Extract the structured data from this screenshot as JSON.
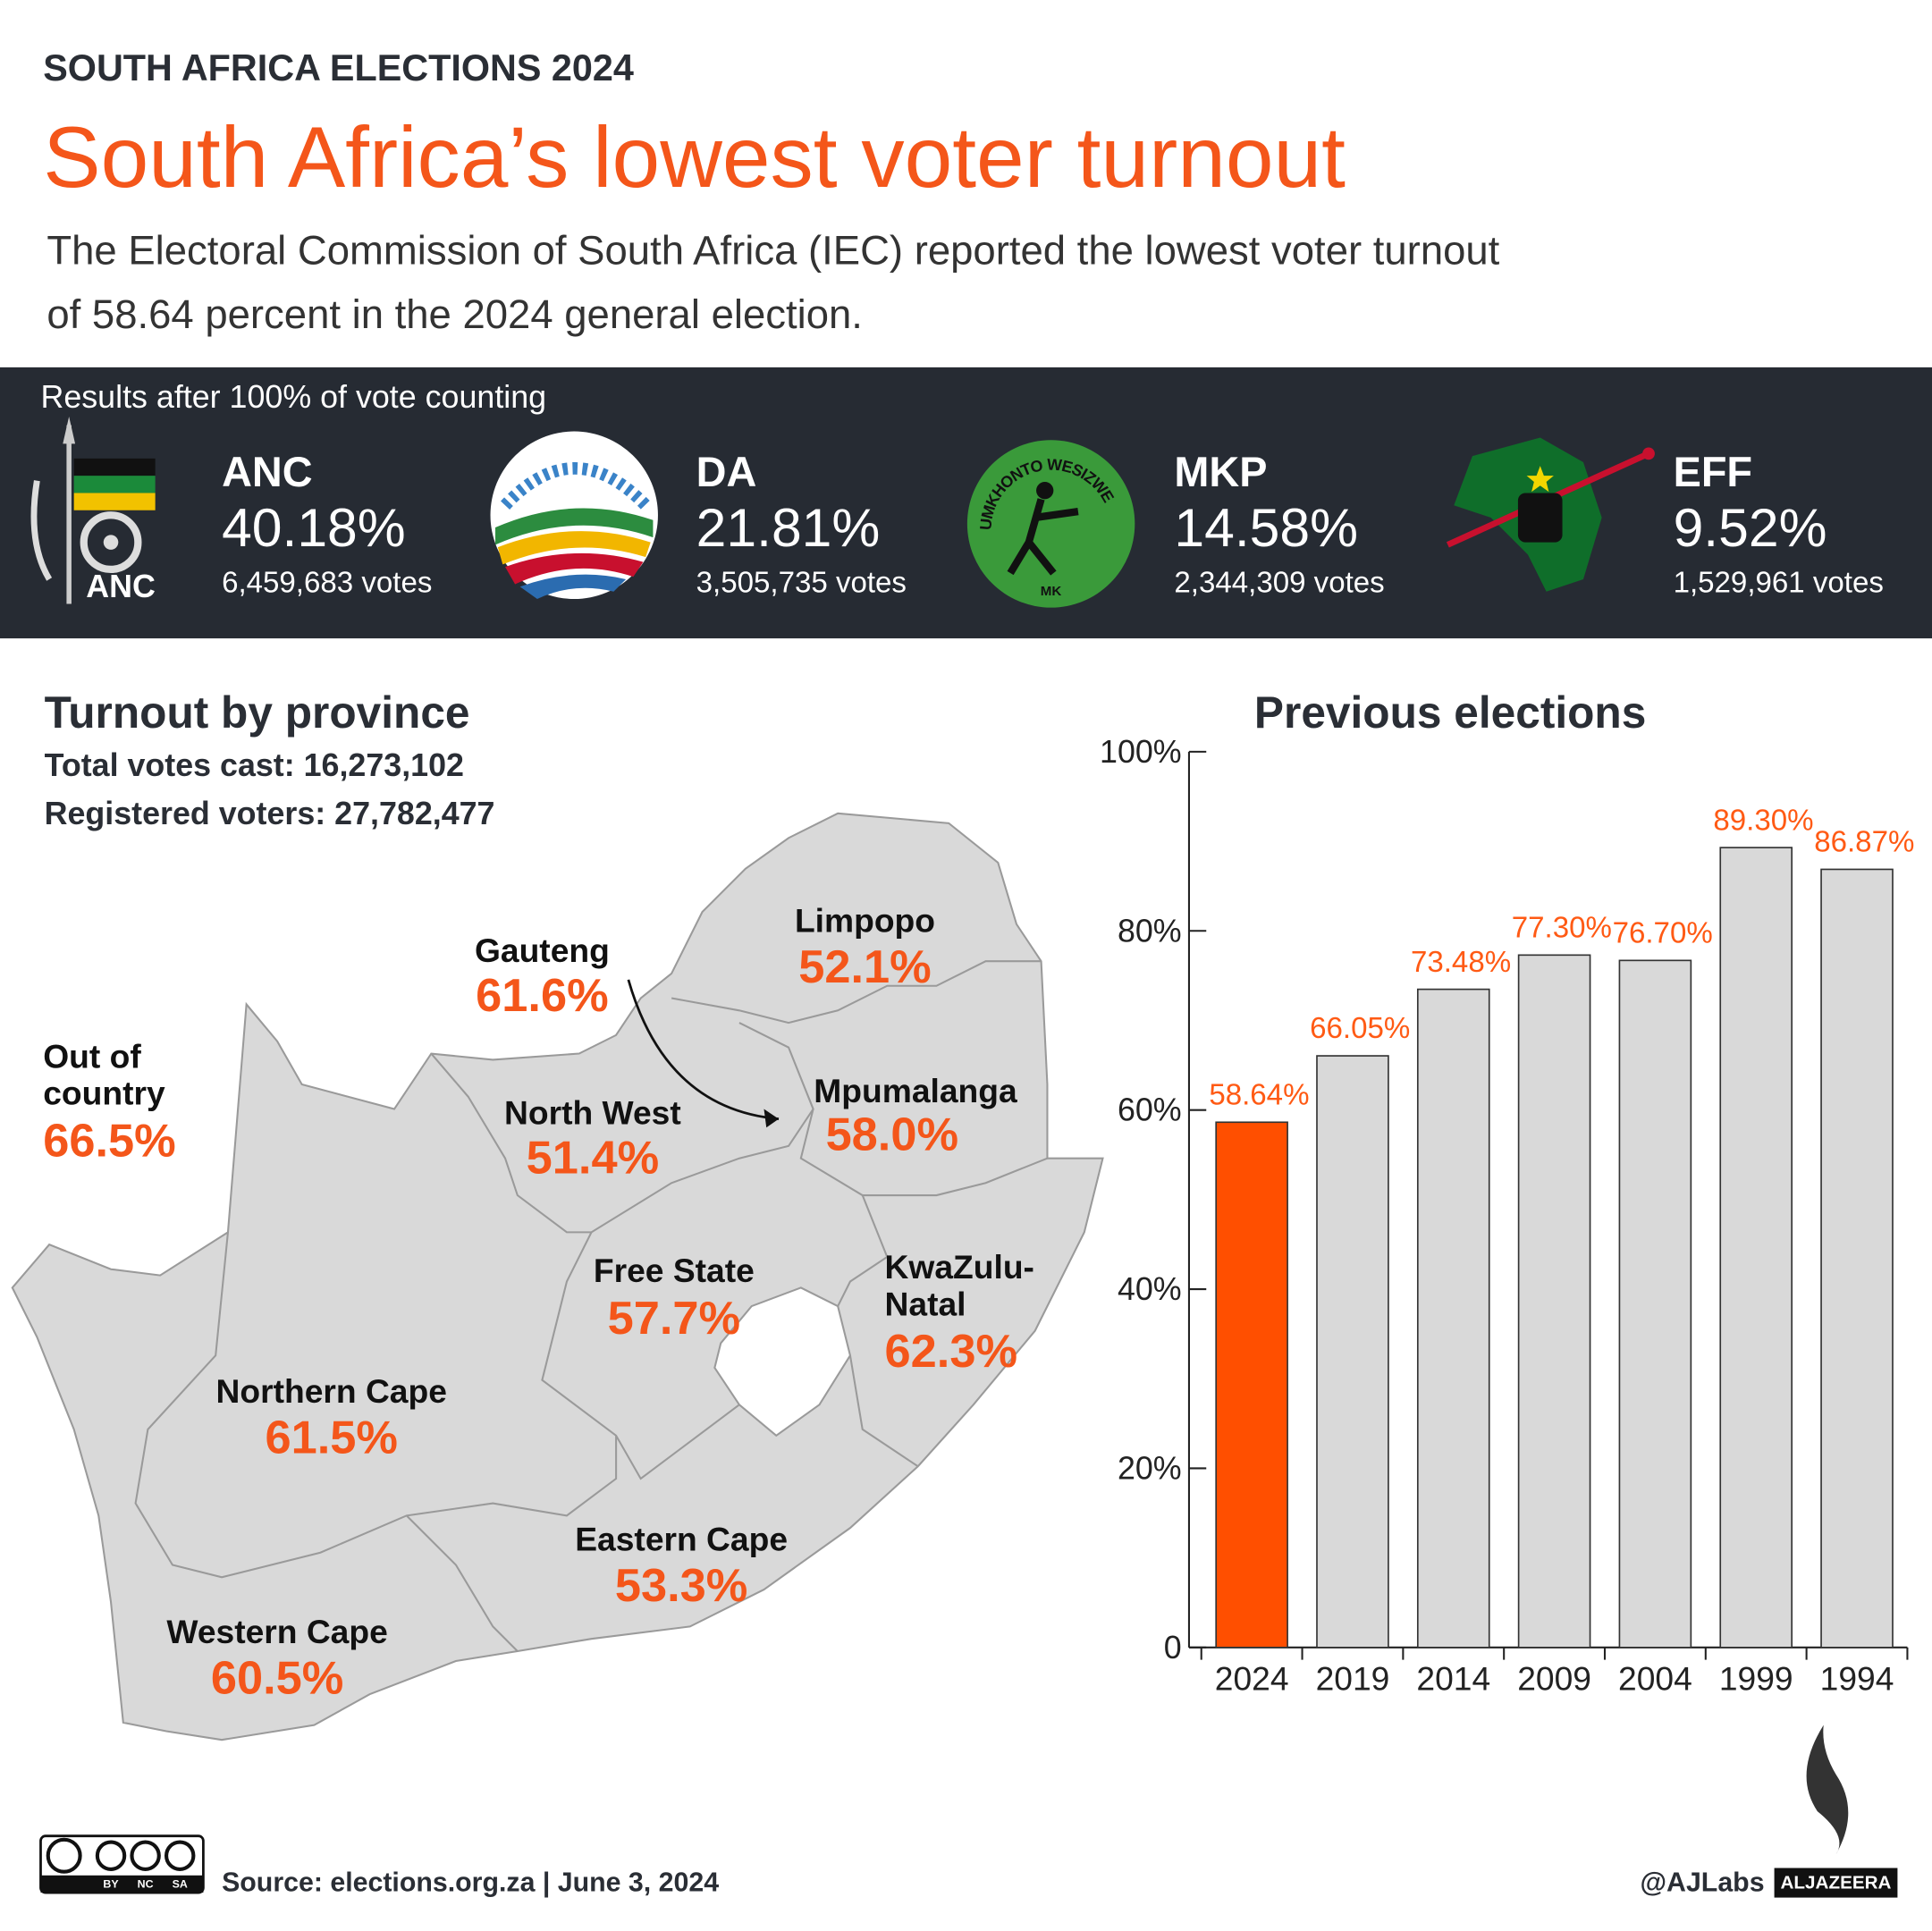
{
  "header": {
    "kicker": "SOUTH AFRICA ELECTIONS 2024",
    "title": "South Africa’s lowest voter turnout",
    "subtitle_lines": [
      "The Electoral Commission of South Africa (IEC) reported the lowest voter turnout",
      "of 58.64 percent in the 2024 general election."
    ]
  },
  "results": {
    "heading": "Results after 100% of vote counting",
    "parties": [
      {
        "name": "ANC",
        "share": "40.18%",
        "votes": "6,459,683 votes"
      },
      {
        "name": "DA",
        "share": "21.81%",
        "votes": "3,505,735 votes"
      },
      {
        "name": "MKP",
        "share": "14.58%",
        "votes": "2,344,309 votes"
      },
      {
        "name": "EFF",
        "share": "9.52%",
        "votes": "1,529,961 votes"
      }
    ],
    "logos": {
      "anc": "ANC",
      "mk_arc": "UMKHONTO WESIZWE",
      "mk_base": "MK"
    }
  },
  "province_map": {
    "heading": "Turnout by province",
    "total": "Total votes cast: 16,273,102",
    "registered": "Registered voters: 27,782,477",
    "provinces": [
      {
        "name_lines": [
          "Limpopo"
        ],
        "turnout": "52.1%"
      },
      {
        "name_lines": [
          "Gauteng"
        ],
        "turnout": "61.6%"
      },
      {
        "name_lines": [
          "Out of",
          "country"
        ],
        "turnout": "66.5%"
      },
      {
        "name_lines": [
          "North West"
        ],
        "turnout": "51.4%"
      },
      {
        "name_lines": [
          "Mpumalanga"
        ],
        "turnout": "58.0%"
      },
      {
        "name_lines": [
          "Free State"
        ],
        "turnout": "57.7%"
      },
      {
        "name_lines": [
          "KwaZulu-",
          "Natal"
        ],
        "turnout": "62.3%"
      },
      {
        "name_lines": [
          "Northern Cape"
        ],
        "turnout": "61.5%"
      },
      {
        "name_lines": [
          "Eastern Cape"
        ],
        "turnout": "53.3%"
      },
      {
        "name_lines": [
          "Western Cape"
        ],
        "turnout": "60.5%"
      }
    ]
  },
  "chart_data": {
    "type": "bar",
    "title": "Previous elections",
    "categories": [
      "2024",
      "2019",
      "2014",
      "2009",
      "2004",
      "1999",
      "1994"
    ],
    "values": [
      58.64,
      66.05,
      73.48,
      77.3,
      76.7,
      89.3,
      86.87
    ],
    "value_labels": [
      "58.64%",
      "66.05%",
      "73.48%",
      "77.30%",
      "76.70%",
      "89.30%",
      "86.87%"
    ],
    "colors": [
      "#ff4f00",
      "#d9d9d9",
      "#d9d9d9",
      "#d9d9d9",
      "#d9d9d9",
      "#d9d9d9",
      "#d9d9d9"
    ],
    "label_color": "#ff5a14",
    "ylim": [
      0,
      100
    ],
    "yticks": [
      0,
      {
        "value": 20,
        "label": "20%"
      },
      {
        "value": 40,
        "label": "40%"
      },
      {
        "value": 60,
        "label": "60%"
      },
      {
        "value": 80,
        "label": "80%"
      },
      {
        "value": 100,
        "label": "100%"
      }
    ]
  },
  "footer": {
    "license": [
      "BY",
      "NC",
      "SA"
    ],
    "source": "Source: elections.org.za | June 3, 2024",
    "credit": "@AJLabs",
    "brand": "ALJAZEERA"
  }
}
